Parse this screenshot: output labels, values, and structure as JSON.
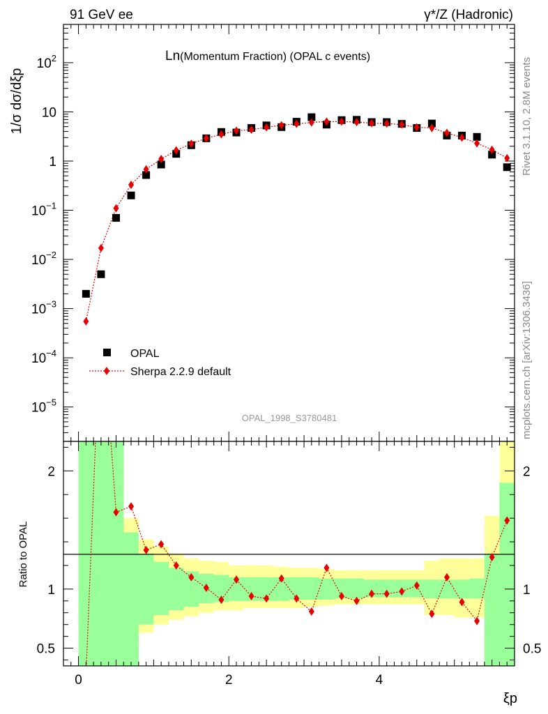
{
  "header": {
    "left_title": "91 GeV ee",
    "right_title": "γ*/Z (Hadronic)"
  },
  "side_labels": {
    "rivet": "Rivet 3.1.10,  2.8M events",
    "mcplots": "mcplots.cern.ch [arXiv:1306.3436]"
  },
  "watermark": "OPAL_1998_S3780481",
  "colors": {
    "data": "#000000",
    "mc": "#e60000",
    "band_inner": "#99ff99",
    "band_outer": "#ffff99"
  },
  "chart_data": [
    {
      "type": "scatter",
      "title": "Ln(Momentum Fraction) (OPAL c events)",
      "title_main": "Ln",
      "title_rest": "(Momentum Fraction) (OPAL c events)",
      "xlabel": "ξp",
      "ylabel": "1/σ dσ/dξp",
      "ylog": true,
      "xlim": [
        -0.2,
        5.8
      ],
      "ylim": [
        2e-06,
        600
      ],
      "ytick_labels": [
        "10^-5",
        "10^-4",
        "10^-3",
        "10^-2",
        "10^-1",
        "1",
        "10",
        "10^2"
      ],
      "legend_position": "bottom-left",
      "legend": [
        "OPAL",
        "Sherpa 2.2.9 default"
      ],
      "x": [
        0.1,
        0.3,
        0.5,
        0.7,
        0.9,
        1.1,
        1.3,
        1.5,
        1.7,
        1.9,
        2.1,
        2.3,
        2.5,
        2.7,
        2.9,
        3.1,
        3.3,
        3.5,
        3.7,
        3.9,
        4.1,
        4.3,
        4.5,
        4.7,
        4.9,
        5.1,
        5.3,
        5.5,
        5.7
      ],
      "series": [
        {
          "name": "OPAL",
          "values": [
            0.002,
            0.005,
            0.07,
            0.2,
            0.52,
            0.85,
            1.4,
            2.1,
            2.9,
            3.9,
            3.8,
            4.7,
            5.3,
            4.9,
            6.3,
            7.8,
            5.5,
            6.8,
            6.9,
            6.2,
            6.2,
            5.7,
            4.7,
            5.8,
            3.3,
            3.3,
            3.1,
            1.35,
            0.75
          ]
        },
        {
          "name": "Sherpa 2.2.9 default",
          "values": [
            0.00055,
            0.017,
            0.11,
            0.33,
            0.68,
            1.1,
            1.65,
            2.25,
            2.9,
            3.5,
            4.15,
            4.35,
            4.85,
            5.35,
            5.7,
            6.1,
            6.35,
            6.35,
            6.2,
            5.9,
            5.8,
            5.5,
            4.85,
            4.7,
            3.75,
            3.0,
            2.3,
            1.7,
            1.15
          ]
        }
      ]
    },
    {
      "type": "line",
      "ylabel": "Ratio to OPAL",
      "xlim": [
        -0.2,
        5.8
      ],
      "ylim": [
        0.35,
        2.25
      ],
      "xtick_labels": [
        "0",
        "2",
        "4"
      ],
      "ytick_labels": [
        "0.5",
        "1",
        "2"
      ],
      "reference_line": 1,
      "x": [
        0.1,
        0.3,
        0.5,
        0.7,
        0.9,
        1.1,
        1.3,
        1.5,
        1.7,
        1.9,
        2.1,
        2.3,
        2.5,
        2.7,
        2.9,
        3.1,
        3.3,
        3.5,
        3.7,
        3.9,
        4.1,
        4.3,
        4.5,
        4.7,
        4.9,
        5.1,
        5.3,
        5.5,
        5.7
      ],
      "series": [
        {
          "name": "Sherpa 2.2.9 default",
          "values": [
            0.27,
            3.4,
            1.65,
            1.7,
            1.33,
            1.38,
            1.2,
            1.1,
            1.01,
            0.91,
            1.08,
            0.94,
            0.92,
            1.09,
            0.92,
            0.81,
            1.18,
            0.94,
            0.9,
            0.96,
            0.96,
            0.98,
            1.03,
            0.79,
            1.1,
            0.89,
            0.73,
            1.27,
            1.58
          ]
        }
      ],
      "band_inner": {
        "edges": [
          0.0,
          0.2,
          0.4,
          0.6,
          0.8,
          1.0,
          1.2,
          1.4,
          1.6,
          1.8,
          2.0,
          2.2,
          2.4,
          2.6,
          2.8,
          3.0,
          3.2,
          3.4,
          3.6,
          3.8,
          4.0,
          4.2,
          4.4,
          4.6,
          4.8,
          5.0,
          5.2,
          5.4,
          5.6,
          5.8
        ],
        "low": [
          0.1,
          0.1,
          0.1,
          0.1,
          0.7,
          0.78,
          0.82,
          0.85,
          0.88,
          0.89,
          0.9,
          0.9,
          0.9,
          0.9,
          0.91,
          0.91,
          0.91,
          0.92,
          0.92,
          0.93,
          0.93,
          0.93,
          0.93,
          0.92,
          0.92,
          0.92,
          0.92,
          0.1,
          0.1
        ],
        "high": [
          3.0,
          3.0,
          3.0,
          1.48,
          1.3,
          1.23,
          1.18,
          1.15,
          1.13,
          1.12,
          1.1,
          1.1,
          1.1,
          1.1,
          1.1,
          1.1,
          1.09,
          1.09,
          1.09,
          1.08,
          1.08,
          1.08,
          1.08,
          1.08,
          1.08,
          1.08,
          1.09,
          1.3,
          1.9
        ]
      },
      "band_outer": {
        "edges": [
          0.0,
          0.2,
          0.4,
          0.6,
          0.8,
          1.0,
          1.2,
          1.4,
          1.6,
          1.8,
          2.0,
          2.2,
          2.4,
          2.6,
          2.8,
          3.0,
          3.2,
          3.4,
          3.6,
          3.8,
          4.0,
          4.2,
          4.4,
          4.6,
          4.8,
          5.0,
          5.2,
          5.4,
          5.6,
          5.8
        ],
        "low": [
          0.1,
          0.1,
          0.1,
          0.55,
          0.63,
          0.7,
          0.74,
          0.77,
          0.8,
          0.82,
          0.82,
          0.84,
          0.84,
          0.84,
          0.84,
          0.85,
          0.86,
          0.87,
          0.87,
          0.87,
          0.87,
          0.87,
          0.87,
          0.78,
          0.78,
          0.76,
          0.76,
          0.1,
          0.1
        ],
        "high": [
          3.0,
          3.0,
          3.0,
          1.6,
          1.42,
          1.36,
          1.3,
          1.26,
          1.24,
          1.23,
          1.2,
          1.2,
          1.2,
          1.19,
          1.18,
          1.18,
          1.17,
          1.16,
          1.16,
          1.16,
          1.16,
          1.16,
          1.16,
          1.24,
          1.26,
          1.26,
          1.26,
          1.62,
          3.0
        ]
      }
    }
  ]
}
